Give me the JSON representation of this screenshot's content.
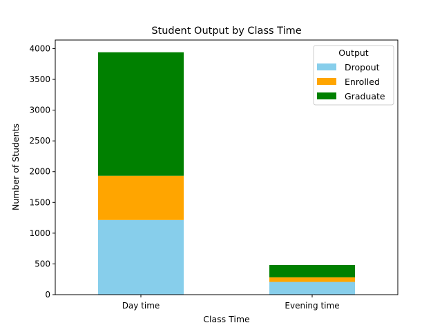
{
  "chart_data": {
    "type": "bar",
    "stacked": true,
    "title": "Student Output by Class Time",
    "xlabel": "Class Time",
    "ylabel": "Number of Students",
    "categories": [
      "Day time",
      "Evening time"
    ],
    "series": [
      {
        "name": "Dropout",
        "color": "#87ceeb",
        "values": [
          1214,
          207
        ]
      },
      {
        "name": "Enrolled",
        "color": "#ffa500",
        "values": [
          719,
          75
        ]
      },
      {
        "name": "Graduate",
        "color": "#008000",
        "values": [
          2008,
          201
        ]
      }
    ],
    "ylim": [
      0,
      4140
    ],
    "yticks": [
      0,
      500,
      1000,
      1500,
      2000,
      2500,
      3000,
      3500,
      4000
    ],
    "grid": false,
    "legend": {
      "title": "Output",
      "placement": "top-right"
    }
  }
}
